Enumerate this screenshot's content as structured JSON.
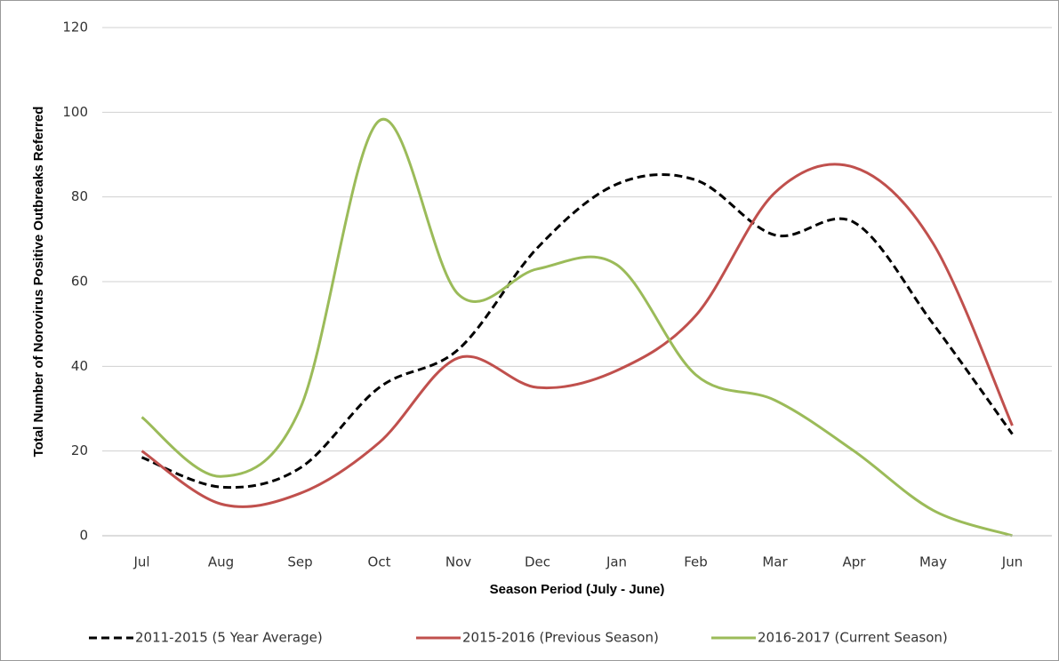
{
  "chart_data": {
    "type": "line",
    "x_label": "Season Period (July - June)",
    "y_label": "Total Number of Norovirus Positive Outbreaks Referred",
    "categories": [
      "Jul",
      "Aug",
      "Sep",
      "Oct",
      "Nov",
      "Dec",
      "Jan",
      "Feb",
      "Mar",
      "Apr",
      "May",
      "Jun"
    ],
    "series": [
      {
        "name": "2011-2015 (5 Year Average)",
        "color": "#000000",
        "dashed": true,
        "values": [
          18.5,
          11.5,
          16,
          35,
          44,
          68,
          83,
          84,
          71,
          74,
          50,
          24
        ]
      },
      {
        "name": "2015-2016 (Previous Season)",
        "color": "#c0504d",
        "dashed": false,
        "values": [
          20,
          7.5,
          10,
          22,
          42,
          35,
          39,
          52,
          81,
          87,
          69,
          26
        ]
      },
      {
        "name": "2016-2017 (Current Season)",
        "color": "#9bbb59",
        "dashed": false,
        "values": [
          28,
          14,
          30,
          98,
          57,
          63,
          64,
          38,
          32,
          20,
          6,
          0
        ]
      }
    ],
    "ylim": [
      0,
      120
    ],
    "yticks": [
      0,
      20,
      40,
      60,
      80,
      100,
      120
    ],
    "grid": true,
    "smooth": true,
    "legend": "bottom"
  }
}
